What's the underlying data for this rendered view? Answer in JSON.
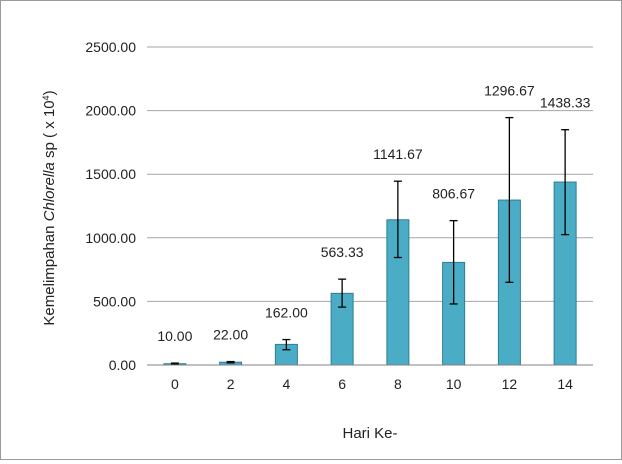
{
  "chart_data": {
    "type": "bar",
    "categories": [
      "0",
      "2",
      "4",
      "6",
      "8",
      "10",
      "12",
      "14"
    ],
    "values": [
      10.0,
      22.0,
      162.0,
      563.33,
      1141.67,
      806.67,
      1296.67,
      1438.33
    ],
    "data_labels": [
      "10.00",
      "22.00",
      "162.00",
      "563.33",
      "1141.67",
      "806.67",
      "1296.67",
      "1438.33"
    ],
    "error_low": [
      5,
      17,
      120,
      455,
      845,
      480,
      650,
      1025
    ],
    "error_high": [
      15,
      27,
      200,
      675,
      1445,
      1135,
      1945,
      1850
    ],
    "xlabel": "Hari Ke-",
    "ylabel": {
      "prefix": "Kemelimpahan ",
      "italic": "Chlorella",
      "middle": " sp ( x 10",
      "superscript": "4",
      "suffix": ")"
    },
    "ylim": [
      0,
      2500
    ],
    "yticks": [
      "0.00",
      "500.00",
      "1000.00",
      "1500.00",
      "2000.00",
      "2500.00"
    ],
    "grid": true,
    "legend": "none",
    "bar_color": "#4bacc6",
    "bar_edge_color": "#2c7f96"
  }
}
